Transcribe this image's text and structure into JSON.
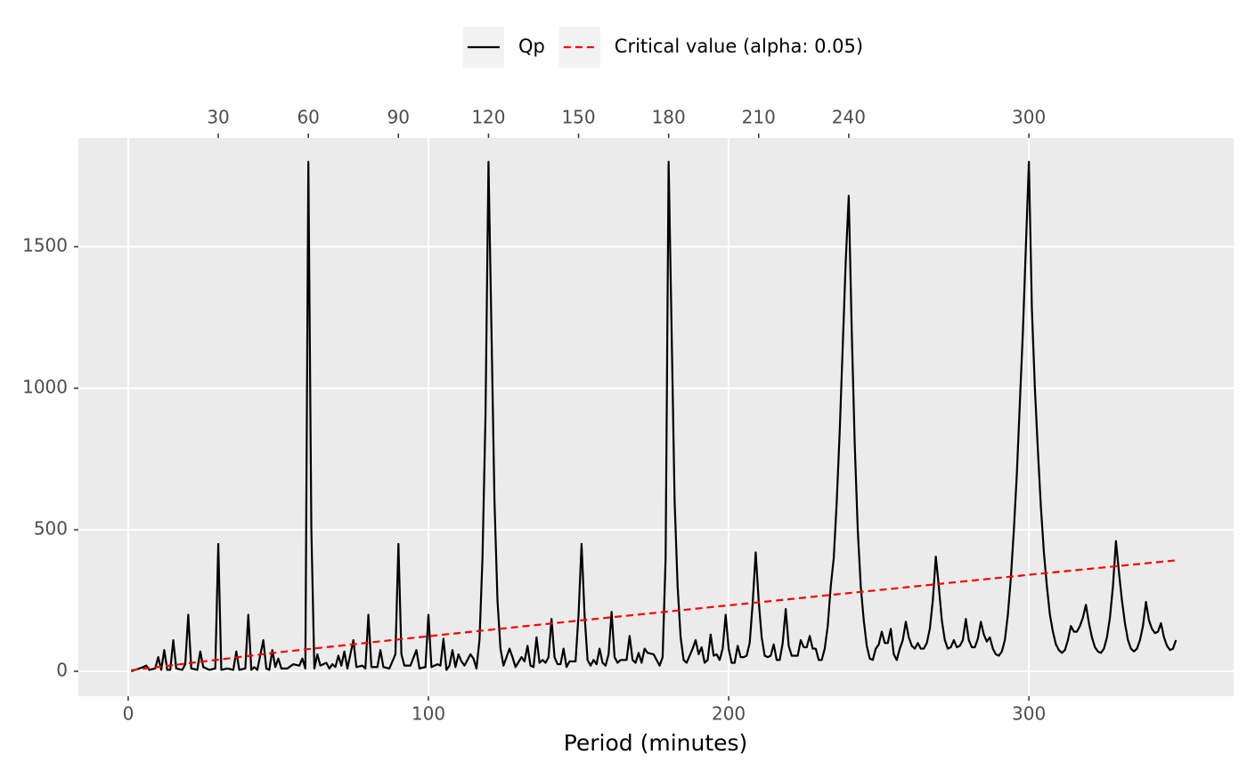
{
  "chart_data": {
    "type": "line",
    "xlabel": "Period (minutes)",
    "xlim": [
      -16.6,
      368.2
    ],
    "xticks": [
      0,
      100,
      200,
      300
    ],
    "x2ticks": [
      30,
      60,
      90,
      120,
      150,
      180,
      210,
      240,
      300
    ],
    "ylim": [
      -88,
      1884
    ],
    "yticks": [
      0,
      500,
      1000,
      1500
    ],
    "grid": true,
    "legend": "top",
    "series": [
      {
        "name": "Qp",
        "color": "#000000",
        "linestyle": "solid",
        "x": [
          1,
          5,
          6,
          7,
          9,
          10,
          11,
          12,
          13,
          14,
          15,
          16,
          18,
          19,
          20,
          21,
          23,
          24,
          25,
          27,
          29,
          30,
          31,
          33,
          35,
          36,
          37,
          39,
          40,
          41,
          42,
          43,
          45,
          46,
          47,
          48,
          49,
          50,
          51,
          53,
          55,
          57,
          58,
          59,
          60,
          61,
          62,
          63,
          64,
          66,
          67,
          68,
          69,
          70,
          71,
          72,
          73,
          75,
          76,
          78,
          79,
          80,
          81,
          83,
          84,
          85,
          87,
          89,
          90,
          91,
          92,
          94,
          96,
          97,
          99,
          100,
          101,
          103,
          104,
          105,
          106,
          107,
          108,
          109,
          110,
          111,
          112,
          114,
          115,
          116,
          117,
          118,
          119,
          120,
          121,
          122,
          123,
          124,
          125,
          127,
          128,
          129,
          131,
          132,
          133,
          134,
          135,
          136,
          137,
          138,
          139,
          140,
          141,
          142,
          143,
          144,
          145,
          146,
          147,
          149,
          150,
          151,
          152,
          153,
          154,
          155,
          156,
          157,
          158,
          159,
          160,
          161,
          162,
          163,
          164,
          166,
          167,
          168,
          169,
          170,
          171,
          172,
          173,
          175,
          177,
          178,
          179,
          180,
          181,
          182,
          183,
          184,
          185,
          186,
          188,
          189,
          190,
          191,
          192,
          193,
          194,
          195,
          196,
          197,
          198,
          199,
          200,
          201,
          202,
          203,
          204,
          205,
          206,
          207,
          208,
          209,
          210,
          211,
          212,
          213,
          214,
          215,
          216,
          217,
          218,
          219,
          220,
          221,
          223,
          224,
          225,
          226,
          227,
          228,
          229,
          230,
          231,
          232,
          233,
          234,
          235,
          236,
          237,
          238,
          239,
          240,
          241,
          242,
          243,
          244,
          245,
          246,
          247,
          248,
          249,
          250,
          251,
          252,
          253,
          254,
          255,
          256,
          257,
          258,
          259,
          260,
          261,
          262,
          263,
          264,
          265,
          266,
          267,
          268,
          269,
          270,
          271,
          272,
          273,
          274,
          275,
          276,
          277,
          278,
          279,
          280,
          281,
          282,
          283,
          284,
          285,
          286,
          287,
          288,
          289,
          290,
          291,
          292,
          293,
          294,
          295,
          296,
          297,
          298,
          299,
          300,
          301,
          302,
          303,
          304,
          305,
          306,
          307,
          308,
          309,
          310,
          311,
          312,
          313,
          314,
          315,
          316,
          317,
          318,
          319,
          320,
          321,
          322,
          323,
          324,
          325,
          326,
          327,
          328,
          329,
          330,
          331,
          332,
          333,
          334,
          335,
          336,
          337,
          338,
          339,
          340,
          341,
          342,
          343,
          344,
          345,
          346,
          347,
          348,
          349
        ],
        "values": [
          0,
          15,
          20,
          5,
          10,
          50,
          5,
          75,
          5,
          5,
          110,
          10,
          5,
          25,
          200,
          10,
          5,
          70,
          15,
          5,
          10,
          450,
          5,
          10,
          5,
          70,
          5,
          10,
          200,
          5,
          15,
          5,
          110,
          10,
          5,
          75,
          15,
          45,
          10,
          10,
          25,
          20,
          45,
          10,
          1800,
          500,
          10,
          60,
          20,
          30,
          10,
          25,
          15,
          55,
          20,
          70,
          10,
          110,
          15,
          20,
          10,
          200,
          15,
          15,
          75,
          15,
          10,
          60,
          450,
          60,
          20,
          20,
          75,
          10,
          15,
          200,
          15,
          25,
          20,
          115,
          5,
          20,
          75,
          15,
          60,
          35,
          20,
          60,
          45,
          10,
          110,
          400,
          900,
          1800,
          1200,
          600,
          250,
          80,
          20,
          80,
          50,
          15,
          50,
          35,
          90,
          20,
          15,
          120,
          30,
          40,
          30,
          50,
          185,
          50,
          25,
          25,
          80,
          15,
          35,
          35,
          200,
          450,
          200,
          40,
          20,
          40,
          25,
          80,
          30,
          20,
          60,
          210,
          50,
          30,
          40,
          40,
          125,
          40,
          30,
          65,
          30,
          80,
          65,
          60,
          20,
          50,
          400,
          1800,
          1200,
          600,
          300,
          120,
          40,
          30,
          80,
          110,
          60,
          85,
          30,
          40,
          130,
          55,
          60,
          40,
          80,
          200,
          80,
          30,
          30,
          90,
          50,
          50,
          55,
          100,
          240,
          420,
          250,
          120,
          55,
          50,
          55,
          95,
          40,
          40,
          100,
          220,
          90,
          55,
          55,
          110,
          85,
          85,
          125,
          80,
          80,
          40,
          40,
          80,
          160,
          300,
          400,
          600,
          850,
          1150,
          1450,
          1680,
          1200,
          800,
          500,
          300,
          180,
          90,
          45,
          40,
          80,
          95,
          140,
          100,
          100,
          150,
          60,
          40,
          80,
          110,
          175,
          120,
          90,
          80,
          100,
          80,
          80,
          100,
          150,
          250,
          405,
          300,
          180,
          110,
          80,
          85,
          110,
          85,
          90,
          110,
          185,
          110,
          85,
          85,
          115,
          175,
          130,
          105,
          120,
          80,
          60,
          55,
          70,
          110,
          200,
          330,
          500,
          700,
          950,
          1200,
          1500,
          1800,
          1280,
          1000,
          780,
          580,
          420,
          300,
          200,
          140,
          95,
          75,
          65,
          75,
          110,
          160,
          140,
          140,
          160,
          190,
          235,
          170,
          120,
          85,
          70,
          65,
          80,
          120,
          190,
          300,
          460,
          350,
          250,
          170,
          110,
          80,
          70,
          80,
          110,
          160,
          245,
          180,
          150,
          135,
          140,
          170,
          120,
          90,
          75,
          80,
          110
        ]
      },
      {
        "name": "Critical value (alpha: 0.05)",
        "color": "#ff0000",
        "linestyle": "dashed",
        "x": [
          1,
          50,
          100,
          150,
          200,
          250,
          300,
          350
        ],
        "values": [
          3.8,
          67,
          124,
          179,
          233,
          287,
          341,
          393
        ]
      }
    ]
  }
}
